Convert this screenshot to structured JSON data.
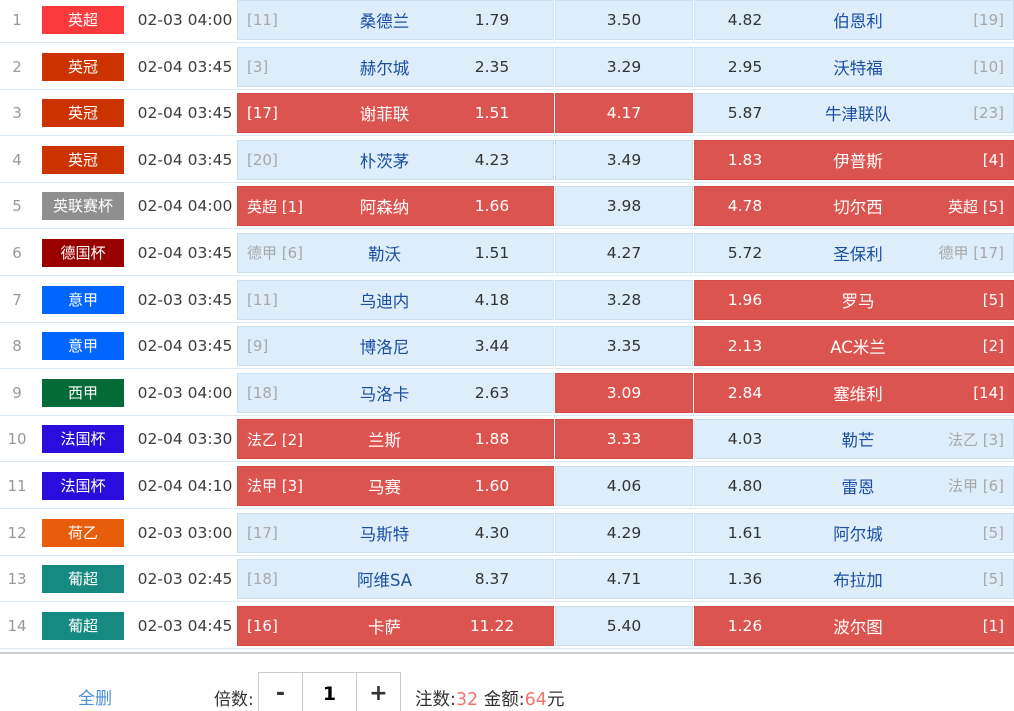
{
  "colors": {
    "selected_cell": "#db544f",
    "cell_bg": "#ddedfa",
    "team_name": "#1c4fa1",
    "link_blue": "#4a90d9",
    "highlight_number": "#f4756e"
  },
  "footer": {
    "delete_all": "全删",
    "multiplier_label": "倍数:",
    "minus": "-",
    "multiplier_value": "1",
    "plus": "+",
    "bets_label": "注数:",
    "bets_value": "32",
    "amount_label": "金额:",
    "amount_value": "64",
    "amount_unit": "元"
  },
  "rows": [
    {
      "index": "1",
      "league": {
        "label": "英超",
        "color": "#fb3b3b"
      },
      "time": "02-03 04:00",
      "home": {
        "rank": "[11]",
        "name": "桑德兰",
        "odds": "1.79",
        "selected": false
      },
      "draw": {
        "odds": "3.50",
        "selected": false
      },
      "away": {
        "odds": "4.82",
        "name": "伯恩利",
        "rank": "[19]",
        "selected": false
      }
    },
    {
      "index": "2",
      "league": {
        "label": "英冠",
        "color": "#cc3300"
      },
      "time": "02-04 03:45",
      "home": {
        "rank": "[3]",
        "name": "赫尔城",
        "odds": "2.35",
        "selected": false
      },
      "draw": {
        "odds": "3.29",
        "selected": false
      },
      "away": {
        "odds": "2.95",
        "name": "沃特福",
        "rank": "[10]",
        "selected": false
      }
    },
    {
      "index": "3",
      "league": {
        "label": "英冠",
        "color": "#cc3300"
      },
      "time": "02-04 03:45",
      "home": {
        "rank": "[17]",
        "name": "谢菲联",
        "odds": "1.51",
        "selected": true
      },
      "draw": {
        "odds": "4.17",
        "selected": true
      },
      "away": {
        "odds": "5.87",
        "name": "牛津联队",
        "rank": "[23]",
        "selected": false
      }
    },
    {
      "index": "4",
      "league": {
        "label": "英冠",
        "color": "#cc3300"
      },
      "time": "02-04 03:45",
      "home": {
        "rank": "[20]",
        "name": "朴茨茅",
        "odds": "4.23",
        "selected": false
      },
      "draw": {
        "odds": "3.49",
        "selected": false
      },
      "away": {
        "odds": "1.83",
        "name": "伊普斯",
        "rank": "[4]",
        "selected": true
      }
    },
    {
      "index": "5",
      "league": {
        "label": "英联赛杯",
        "color": "#8f8f8f"
      },
      "time": "02-04 04:00",
      "home": {
        "rank": "英超 [1]",
        "name": "阿森纳",
        "odds": "1.66",
        "selected": true
      },
      "draw": {
        "odds": "3.98",
        "selected": false
      },
      "away": {
        "odds": "4.78",
        "name": "切尔西",
        "rank": "英超 [5]",
        "selected": true
      }
    },
    {
      "index": "6",
      "league": {
        "label": "德国杯",
        "color": "#990000"
      },
      "time": "02-04 03:45",
      "home": {
        "rank": "德甲 [6]",
        "name": "勒沃",
        "odds": "1.51",
        "selected": false
      },
      "draw": {
        "odds": "4.27",
        "selected": false
      },
      "away": {
        "odds": "5.72",
        "name": "圣保利",
        "rank": "德甲 [17]",
        "selected": false
      }
    },
    {
      "index": "7",
      "league": {
        "label": "意甲",
        "color": "#0066ff"
      },
      "time": "02-03 03:45",
      "home": {
        "rank": "[11]",
        "name": "乌迪内",
        "odds": "4.18",
        "selected": false
      },
      "draw": {
        "odds": "3.28",
        "selected": false
      },
      "away": {
        "odds": "1.96",
        "name": "罗马",
        "rank": "[5]",
        "selected": true
      }
    },
    {
      "index": "8",
      "league": {
        "label": "意甲",
        "color": "#0066ff"
      },
      "time": "02-04 03:45",
      "home": {
        "rank": "[9]",
        "name": "博洛尼",
        "odds": "3.44",
        "selected": false
      },
      "draw": {
        "odds": "3.35",
        "selected": false
      },
      "away": {
        "odds": "2.13",
        "name": "AC米兰",
        "rank": "[2]",
        "selected": true
      }
    },
    {
      "index": "9",
      "league": {
        "label": "西甲",
        "color": "#046a38"
      },
      "time": "02-03 04:00",
      "home": {
        "rank": "[18]",
        "name": "马洛卡",
        "odds": "2.63",
        "selected": false
      },
      "draw": {
        "odds": "3.09",
        "selected": true
      },
      "away": {
        "odds": "2.84",
        "name": "塞维利",
        "rank": "[14]",
        "selected": true
      }
    },
    {
      "index": "10",
      "league": {
        "label": "法国杯",
        "color": "#2a0cdc"
      },
      "time": "02-04 03:30",
      "home": {
        "rank": "法乙 [2]",
        "name": "兰斯",
        "odds": "1.88",
        "selected": true
      },
      "draw": {
        "odds": "3.33",
        "selected": true
      },
      "away": {
        "odds": "4.03",
        "name": "勒芒",
        "rank": "法乙 [3]",
        "selected": false
      }
    },
    {
      "index": "11",
      "league": {
        "label": "法国杯",
        "color": "#2a0cdc"
      },
      "time": "02-04 04:10",
      "home": {
        "rank": "法甲 [3]",
        "name": "马赛",
        "odds": "1.60",
        "selected": true
      },
      "draw": {
        "odds": "4.06",
        "selected": false
      },
      "away": {
        "odds": "4.80",
        "name": "雷恩",
        "rank": "法甲 [6]",
        "selected": false
      }
    },
    {
      "index": "12",
      "league": {
        "label": "荷乙",
        "color": "#e85d0c"
      },
      "time": "02-03 03:00",
      "home": {
        "rank": "[17]",
        "name": "马斯特",
        "odds": "4.30",
        "selected": false
      },
      "draw": {
        "odds": "4.29",
        "selected": false
      },
      "away": {
        "odds": "1.61",
        "name": "阿尔城",
        "rank": "[5]",
        "selected": false
      }
    },
    {
      "index": "13",
      "league": {
        "label": "葡超",
        "color": "#168a80"
      },
      "time": "02-03 02:45",
      "home": {
        "rank": "[18]",
        "name": "阿维SA",
        "odds": "8.37",
        "selected": false
      },
      "draw": {
        "odds": "4.71",
        "selected": false
      },
      "away": {
        "odds": "1.36",
        "name": "布拉加",
        "rank": "[5]",
        "selected": false
      }
    },
    {
      "index": "14",
      "league": {
        "label": "葡超",
        "color": "#168a80"
      },
      "time": "02-03 04:45",
      "home": {
        "rank": "[16]",
        "name": "卡萨",
        "odds": "11.22",
        "selected": true
      },
      "draw": {
        "odds": "5.40",
        "selected": false
      },
      "away": {
        "odds": "1.26",
        "name": "波尔图",
        "rank": "[1]",
        "selected": true
      }
    }
  ]
}
